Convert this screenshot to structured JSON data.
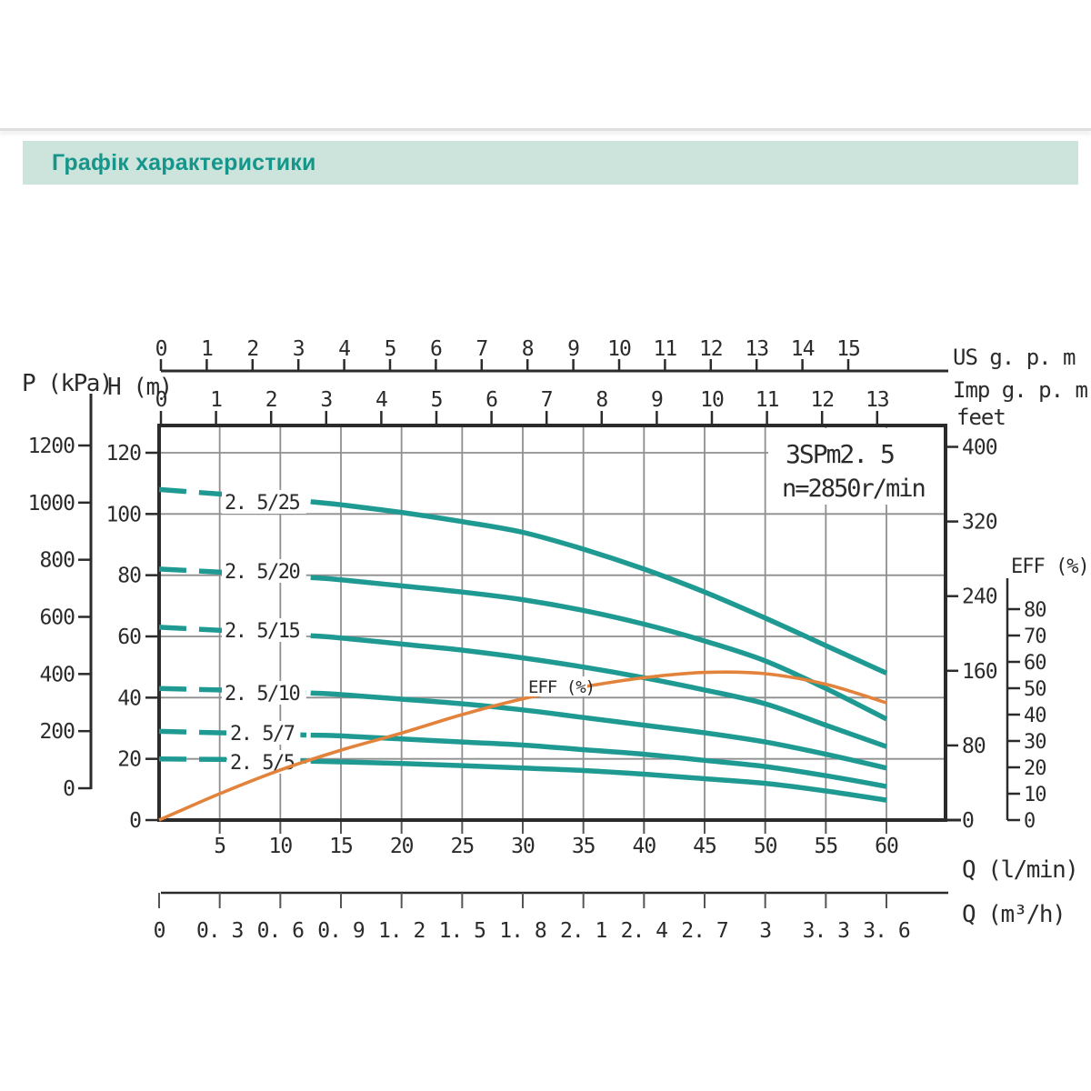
{
  "header": {
    "title": "Графік характеристики"
  },
  "chart_data": {
    "type": "line",
    "title": "3SPm2. 5",
    "subtitle": "n=2850r/min",
    "eff_curve_label": "EFF (%)",
    "xlabel": "Q (l/min)",
    "ylabel": "H (m)",
    "x_lmin": [
      0,
      5,
      10,
      15,
      20,
      25,
      30,
      35,
      40,
      45,
      50,
      55,
      60
    ],
    "series": [
      {
        "name": "2. 5/25",
        "unit": "m",
        "values": [
          108,
          106.5,
          105,
          103,
          100.5,
          97.5,
          94,
          88.5,
          82,
          74.5,
          66,
          57,
          48
        ]
      },
      {
        "name": "2. 5/20",
        "unit": "m",
        "values": [
          82,
          81,
          80,
          78.5,
          76.5,
          74.5,
          72,
          68.5,
          64,
          58.5,
          52,
          43,
          33
        ]
      },
      {
        "name": "2. 5/15",
        "unit": "m",
        "values": [
          63,
          62,
          61,
          59.5,
          57.5,
          55.5,
          53,
          50,
          46.5,
          42.5,
          38,
          31,
          24
        ]
      },
      {
        "name": "2. 5/10",
        "unit": "m",
        "values": [
          43,
          42.5,
          42,
          41,
          39.5,
          38,
          36,
          33.5,
          31,
          28.5,
          25.5,
          21.5,
          17
        ]
      },
      {
        "name": "2. 5/7",
        "unit": "m",
        "values": [
          29,
          28.5,
          28,
          27.5,
          26.5,
          25.5,
          24.5,
          23,
          21.5,
          19.5,
          17.5,
          14.5,
          11
        ]
      },
      {
        "name": "2. 5/5",
        "unit": "m",
        "values": [
          20,
          19.8,
          19.5,
          19,
          18.5,
          17.8,
          17,
          16.2,
          15,
          13.5,
          12,
          9.5,
          6.5
        ]
      },
      {
        "name": "EFF",
        "unit": "%",
        "values": [
          0,
          10,
          19,
          26.5,
          33,
          40,
          46,
          50.5,
          54,
          56,
          55.5,
          51.5,
          44.5
        ]
      }
    ],
    "axes": {
      "top_us": {
        "label": "US g. p. m",
        "ticks": [
          0,
          1,
          2,
          3,
          4,
          5,
          6,
          7,
          8,
          9,
          10,
          11,
          12,
          13,
          14,
          15
        ]
      },
      "top_imp": {
        "label": "Imp g. p. m",
        "ticks": [
          0,
          1,
          2,
          3,
          4,
          5,
          6,
          7,
          8,
          9,
          10,
          11,
          12,
          13
        ]
      },
      "left_p": {
        "label": "P (kPa)",
        "ticks": [
          1200,
          1000,
          800,
          600,
          400,
          200,
          0
        ]
      },
      "left_h": {
        "label": "H (m)",
        "ticks": [
          120,
          100,
          80,
          60,
          40,
          20,
          0
        ]
      },
      "right_feet": {
        "label": "feet",
        "ticks": [
          400,
          320,
          240,
          160,
          80,
          0
        ]
      },
      "right_eff": {
        "label": "EFF (%)",
        "ticks": [
          80,
          70,
          60,
          50,
          40,
          30,
          20,
          10,
          0
        ]
      },
      "bottom_lmin": {
        "label": "Q (l/min)",
        "ticks": [
          5,
          10,
          15,
          20,
          25,
          30,
          35,
          40,
          45,
          50,
          55,
          60
        ]
      },
      "bottom_m3h": {
        "label": "Q (m³/h)",
        "ticks": [
          "0",
          "0. 3",
          "0. 6",
          "0. 9",
          "1. 2",
          "1. 5",
          "1. 8",
          "2. 1",
          "2. 4",
          "2. 7",
          "3",
          "3. 3",
          "3. 6"
        ]
      }
    },
    "colors": {
      "pump_curve": "#1f9a92",
      "efficiency_curve": "#e2823b",
      "grid": "#8f8f8f",
      "frame": "#2b2b2b",
      "text": "#2b2b2b",
      "header_bg": "#cde4dd",
      "header_text": "#16968a"
    }
  }
}
